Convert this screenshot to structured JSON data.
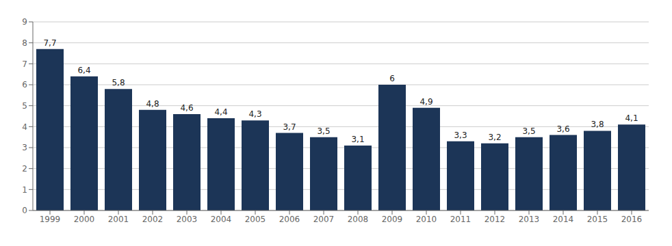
{
  "chart_data": {
    "type": "bar",
    "categories": [
      "1999",
      "2000",
      "2001",
      "2002",
      "2003",
      "2004",
      "2005",
      "2006",
      "2007",
      "2008",
      "2009",
      "2010",
      "2011",
      "2012",
      "2013",
      "2014",
      "2015",
      "2016"
    ],
    "values": [
      7.7,
      6.4,
      5.8,
      4.8,
      4.6,
      4.4,
      4.3,
      3.7,
      3.5,
      3.1,
      6.0,
      4.9,
      3.3,
      3.2,
      3.5,
      3.6,
      3.8,
      4.1
    ],
    "value_labels": [
      "7,7",
      "6,4",
      "5,8",
      "4,8",
      "4,6",
      "4,4",
      "4,3",
      "3,7",
      "3,5",
      "3,1",
      "6",
      "4,9",
      "3,3",
      "3,2",
      "3,5",
      "3,6",
      "3,8",
      "4,1"
    ],
    "color": "#1c3557",
    "ylim": [
      0,
      9
    ],
    "yticks": [
      0,
      1,
      2,
      3,
      4,
      5,
      6,
      7,
      8,
      9
    ],
    "grid": true
  }
}
